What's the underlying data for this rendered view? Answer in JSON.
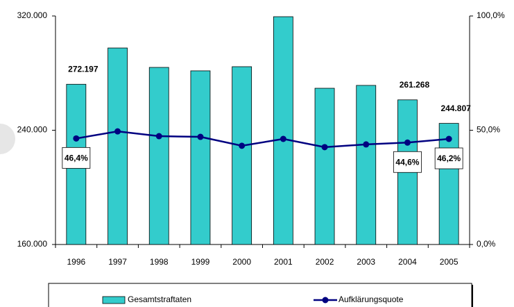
{
  "chart_data": {
    "type": "bar",
    "categories": [
      "1996",
      "1997",
      "1998",
      "1999",
      "2000",
      "2001",
      "2002",
      "2003",
      "2004",
      "2005"
    ],
    "series": [
      {
        "name": "Gesamtstraftaten",
        "type": "bar",
        "color": "#33cccc",
        "values": [
          272197,
          297600,
          284000,
          281600,
          284500,
          319500,
          269400,
          271400,
          261268,
          244807
        ],
        "value_labels": [
          "272.197",
          null,
          null,
          null,
          null,
          null,
          null,
          null,
          "261.268",
          "244.807"
        ]
      },
      {
        "name": "Aufklärungsquote",
        "type": "line",
        "color": "#000080",
        "axis": "y2",
        "values": [
          46.4,
          49.5,
          47.4,
          47.1,
          43.2,
          46.2,
          42.6,
          43.8,
          44.6,
          46.2
        ],
        "value_labels": [
          "46,4%",
          null,
          null,
          null,
          null,
          null,
          null,
          null,
          "44,6%",
          "46,2%"
        ]
      }
    ],
    "ylim": [
      160000,
      320000
    ],
    "yticks": [
      {
        "value": 160000,
        "label": "160.000"
      },
      {
        "value": 240000,
        "label": "240.000"
      },
      {
        "value": 320000,
        "label": "320.000"
      }
    ],
    "y2lim": [
      0,
      100
    ],
    "y2ticks": [
      {
        "value": 0,
        "label": "0,0%"
      },
      {
        "value": 50,
        "label": "50,0%"
      },
      {
        "value": 100,
        "label": "100,0%"
      }
    ],
    "legend": "bottom"
  }
}
